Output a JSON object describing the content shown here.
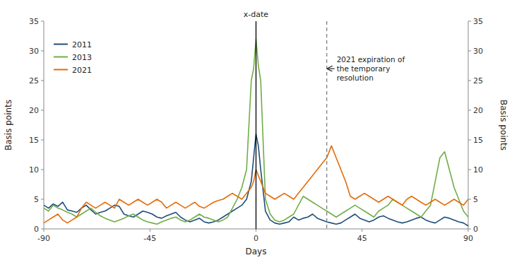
{
  "chart_data": {
    "type": "line",
    "x_label": "Days",
    "y_label": "Basis points",
    "y2_label": "Basis points",
    "xlim": [
      -90,
      90
    ],
    "xticks": [
      -90,
      -45,
      0,
      45,
      90
    ],
    "ylim": [
      0,
      35
    ],
    "yticks": [
      0,
      5,
      10,
      15,
      20,
      25,
      30,
      35
    ],
    "y2lim": [
      0,
      35
    ],
    "y2ticks": [
      0,
      5,
      10,
      15,
      20,
      25,
      30,
      35
    ],
    "legend": "upper left",
    "x": [
      -90,
      -88,
      -86,
      -84,
      -82,
      -80,
      -78,
      -76,
      -74,
      -72,
      -70,
      -68,
      -66,
      -64,
      -62,
      -60,
      -58,
      -56,
      -54,
      -52,
      -50,
      -48,
      -46,
      -44,
      -42,
      -40,
      -38,
      -36,
      -34,
      -32,
      -30,
      -28,
      -26,
      -24,
      -22,
      -20,
      -18,
      -16,
      -14,
      -12,
      -10,
      -8,
      -6,
      -4,
      -2,
      -1,
      0,
      1,
      2,
      4,
      6,
      8,
      10,
      12,
      14,
      16,
      18,
      20,
      22,
      24,
      26,
      28,
      30,
      32,
      34,
      36,
      38,
      40,
      42,
      44,
      46,
      48,
      50,
      52,
      54,
      56,
      58,
      60,
      62,
      64,
      66,
      68,
      70,
      72,
      74,
      76,
      78,
      80,
      82,
      84,
      86,
      88,
      90
    ],
    "series": [
      {
        "name": "2011",
        "color": "#1f4e79",
        "values": [
          4.0,
          3.5,
          4.2,
          3.8,
          4.5,
          3.2,
          3.0,
          2.8,
          3.5,
          4.0,
          3.2,
          2.5,
          2.8,
          3.0,
          3.5,
          4.0,
          3.8,
          2.5,
          2.2,
          2.0,
          2.5,
          3.0,
          2.8,
          2.5,
          2.0,
          1.8,
          2.2,
          2.5,
          2.8,
          2.0,
          1.5,
          1.2,
          1.5,
          1.8,
          1.2,
          1.0,
          1.2,
          1.5,
          2.0,
          2.5,
          3.0,
          3.5,
          4.0,
          5.0,
          8.0,
          12.0,
          16.0,
          14.0,
          10.0,
          3.0,
          1.5,
          1.0,
          0.8,
          1.0,
          1.2,
          2.0,
          1.5,
          1.8,
          2.0,
          2.5,
          1.8,
          1.5,
          1.2,
          1.0,
          0.8,
          1.0,
          1.5,
          2.0,
          2.5,
          1.8,
          1.5,
          1.2,
          1.5,
          2.0,
          2.2,
          1.8,
          1.5,
          1.2,
          1.0,
          1.2,
          1.5,
          1.8,
          2.0,
          1.5,
          1.2,
          1.0,
          1.5,
          2.0,
          1.8,
          1.5,
          1.2,
          1.0,
          0.5
        ]
      },
      {
        "name": "2013",
        "color": "#70ad47",
        "values": [
          3.5,
          3.0,
          4.0,
          3.5,
          3.2,
          2.8,
          2.5,
          2.0,
          2.5,
          3.0,
          3.5,
          2.8,
          2.2,
          1.8,
          1.5,
          1.2,
          1.5,
          1.8,
          2.2,
          2.5,
          2.0,
          1.5,
          1.2,
          1.0,
          0.8,
          1.2,
          1.5,
          1.8,
          2.0,
          1.5,
          1.2,
          1.5,
          2.0,
          2.5,
          2.0,
          1.8,
          1.5,
          1.2,
          1.5,
          2.0,
          3.5,
          5.0,
          7.0,
          10.0,
          25.0,
          27.0,
          32.0,
          27.5,
          25.0,
          5.0,
          2.5,
          1.5,
          1.2,
          1.5,
          2.0,
          2.5,
          4.0,
          5.5,
          5.0,
          4.5,
          4.0,
          3.5,
          3.0,
          2.5,
          2.0,
          2.5,
          3.0,
          3.5,
          4.0,
          3.5,
          3.0,
          2.5,
          2.0,
          3.0,
          3.5,
          4.0,
          5.0,
          4.5,
          4.0,
          3.5,
          3.0,
          2.5,
          2.0,
          3.0,
          4.0,
          8.0,
          12.0,
          13.0,
          10.0,
          7.0,
          5.0,
          3.0,
          2.0
        ]
      },
      {
        "name": "2021",
        "color": "#e36c09",
        "values": [
          1.0,
          1.5,
          2.0,
          2.5,
          1.5,
          1.0,
          1.5,
          2.0,
          3.5,
          4.5,
          4.0,
          3.5,
          4.0,
          4.5,
          4.0,
          3.5,
          5.0,
          4.5,
          4.0,
          4.5,
          5.0,
          4.5,
          4.0,
          4.5,
          5.0,
          4.5,
          3.5,
          4.0,
          4.5,
          4.0,
          3.5,
          4.0,
          4.5,
          3.8,
          3.5,
          4.0,
          4.5,
          4.8,
          5.0,
          5.5,
          6.0,
          5.5,
          5.0,
          6.0,
          7.0,
          8.0,
          10.0,
          9.0,
          8.0,
          6.0,
          5.5,
          5.0,
          5.5,
          6.0,
          5.5,
          5.0,
          6.0,
          7.0,
          8.0,
          9.0,
          10.0,
          11.0,
          12.0,
          14.0,
          12.0,
          10.0,
          8.0,
          5.5,
          5.0,
          5.5,
          6.0,
          5.5,
          5.0,
          4.5,
          5.0,
          5.5,
          5.0,
          4.5,
          4.0,
          5.0,
          5.5,
          5.0,
          4.5,
          4.0,
          4.5,
          5.0,
          4.5,
          4.0,
          4.5,
          5.0,
          4.5,
          4.0,
          5.0
        ]
      }
    ],
    "annotations": [
      {
        "text": "x-date",
        "x": 0,
        "line_style": "solid",
        "color": "black"
      },
      {
        "text": "2021 expiration of\nthe temporary\nresolution",
        "x": 30,
        "y": 27,
        "line_style": "dashed",
        "color": "gray"
      }
    ]
  }
}
